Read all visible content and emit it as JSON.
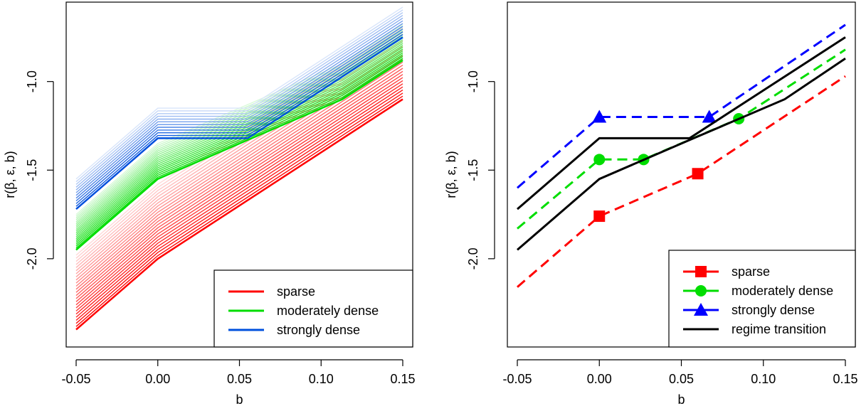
{
  "chart_data": [
    {
      "type": "line",
      "title": "",
      "xlabel": "b",
      "ylabel": "r(β, ε, b)",
      "xlim": [
        -0.05,
        0.15
      ],
      "ylim": [
        -2.45,
        -0.6
      ],
      "x_ticks": [
        -0.05,
        0.0,
        0.05,
        0.1,
        0.15
      ],
      "x_tick_labels": [
        "-0.05",
        "0.00",
        "0.05",
        "0.10",
        "0.15"
      ],
      "y_ticks": [
        -2.0,
        -1.5,
        -1.0
      ],
      "y_tick_labels": [
        "-2.0",
        "-1.5",
        "-1.0"
      ],
      "grid": false,
      "legend_position": "bottom-right",
      "series": [
        {
          "name": "sparse",
          "color": "#ff0000",
          "band_count": 25,
          "band_shift_top": 0.42,
          "x": [
            -0.05,
            0.0,
            0.15
          ],
          "y": [
            -2.4,
            -2.0,
            -1.1
          ]
        },
        {
          "name": "moderately dense",
          "color": "#00dd00",
          "band_count": 20,
          "band_shift_top": 0.2,
          "x": [
            -0.05,
            0.0,
            0.055,
            0.113,
            0.15
          ],
          "y": [
            -1.95,
            -1.55,
            -1.33,
            -1.1,
            -0.88
          ]
        },
        {
          "name": "strongly dense",
          "color": "#0050dd",
          "band_count": 12,
          "band_shift_top": 0.17,
          "x": [
            -0.05,
            0.0,
            0.055,
            0.15
          ],
          "y": [
            -1.72,
            -1.32,
            -1.32,
            -0.75
          ]
        }
      ]
    },
    {
      "type": "line",
      "title": "",
      "xlabel": "b",
      "ylabel": "r(β, ε, b)",
      "xlim": [
        -0.05,
        0.15
      ],
      "ylim": [
        -2.45,
        -0.6
      ],
      "x_ticks": [
        -0.05,
        0.0,
        0.05,
        0.1,
        0.15
      ],
      "x_tick_labels": [
        "-0.05",
        "0.00",
        "0.05",
        "0.10",
        "0.15"
      ],
      "y_ticks": [
        -2.0,
        -1.5,
        -1.0
      ],
      "y_tick_labels": [
        "-2.0",
        "-1.5",
        "-1.0"
      ],
      "grid": false,
      "legend_position": "bottom-right",
      "series": [
        {
          "name": "sparse",
          "color": "#ff0000",
          "dash": true,
          "marker": "square",
          "x": [
            -0.05,
            0.0,
            0.06,
            0.15
          ],
          "y": [
            -2.16,
            -1.76,
            -1.52,
            -0.97
          ],
          "marker_x": [
            0.0,
            0.06
          ],
          "marker_y": [
            -1.76,
            -1.52
          ]
        },
        {
          "name": "moderately dense",
          "color": "#00dd00",
          "dash": true,
          "marker": "circle",
          "x": [
            -0.05,
            0.0,
            0.027,
            0.085,
            0.15
          ],
          "y": [
            -1.83,
            -1.44,
            -1.44,
            -1.21,
            -0.82
          ],
          "marker_x": [
            0.0,
            0.027,
            0.085
          ],
          "marker_y": [
            -1.44,
            -1.44,
            -1.21
          ]
        },
        {
          "name": "strongly dense",
          "color": "#0000ff",
          "dash": true,
          "marker": "triangle",
          "x": [
            -0.05,
            0.0,
            0.067,
            0.15
          ],
          "y": [
            -1.6,
            -1.2,
            -1.2,
            -0.68
          ],
          "marker_x": [
            0.0,
            0.067
          ],
          "marker_y": [
            -1.2,
            -1.2
          ]
        },
        {
          "name": "regime transition",
          "color": "#000000",
          "dash": false,
          "marker": "none",
          "paths": [
            {
              "x": [
                -0.05,
                0.0,
                0.055,
                0.15
              ],
              "y": [
                -1.72,
                -1.32,
                -1.32,
                -0.75
              ]
            },
            {
              "x": [
                -0.05,
                0.0,
                0.055,
                0.113,
                0.15
              ],
              "y": [
                -1.95,
                -1.55,
                -1.33,
                -1.1,
                -0.87
              ]
            }
          ]
        }
      ]
    }
  ]
}
